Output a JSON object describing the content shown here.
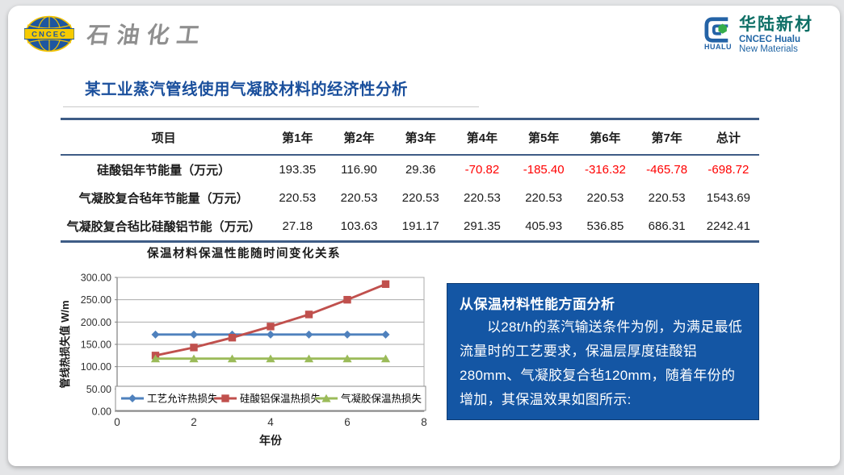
{
  "header": {
    "left_logo": {
      "acronym": "CNCEC",
      "brand": "石油化工"
    },
    "right_logo": {
      "cn": "华陆新材",
      "en1": "CNCEC Hualu",
      "en2": "New Materials",
      "mark": "HUALU"
    }
  },
  "title": "某工业蒸汽管线使用气凝胶材料的经济性分析",
  "table": {
    "columns": [
      "项目",
      "第1年",
      "第2年",
      "第3年",
      "第4年",
      "第5年",
      "第6年",
      "第7年",
      "总计"
    ],
    "rows": [
      {
        "label": "硅酸铝年节能量（万元）",
        "values": [
          "193.35",
          "116.90",
          "29.36",
          "-70.82",
          "-185.40",
          "-316.32",
          "-465.78",
          "-698.72"
        ]
      },
      {
        "label": "气凝胶复合毡年节能量（万元）",
        "values": [
          "220.53",
          "220.53",
          "220.53",
          "220.53",
          "220.53",
          "220.53",
          "220.53",
          "1543.69"
        ]
      },
      {
        "label": "气凝胶复合毡比硅酸铝节能（万元）",
        "values": [
          "27.18",
          "103.63",
          "191.17",
          "291.35",
          "405.93",
          "536.85",
          "686.31",
          "2242.41"
        ]
      }
    ],
    "negative_color": "#FF0000",
    "border_color": "#3E5C86"
  },
  "chart_data": {
    "type": "line",
    "title": "保温材料保温性能随时间变化关系",
    "xlabel": "年份",
    "ylabel": "管线热损失值 W/m",
    "x": [
      1,
      2,
      3,
      4,
      5,
      6,
      7
    ],
    "xlim": [
      0,
      8
    ],
    "xticks": [
      0,
      2,
      4,
      6,
      8
    ],
    "ylim": [
      0,
      300
    ],
    "ytick_step": 50,
    "grid": true,
    "legend_position": "bottom-inside",
    "series": [
      {
        "name": "工艺允许热损失",
        "color": "#4F81BD",
        "marker": "diamond",
        "values": [
          172,
          172,
          172,
          172,
          172,
          172,
          172
        ]
      },
      {
        "name": "硅酸铝保温热损失",
        "color": "#C0504D",
        "marker": "square",
        "values": [
          125,
          143,
          165,
          190,
          217,
          250,
          285
        ]
      },
      {
        "name": "气凝胶保温热损失",
        "color": "#9BBB59",
        "marker": "triangle",
        "values": [
          118,
          118,
          118,
          118,
          118,
          118,
          118
        ]
      }
    ]
  },
  "info_box": {
    "heading": "从保温材料性能方面分析",
    "body": "以28t/h的蒸汽输送条件为例，为满足最低流量时的工艺要求，保温层厚度硅酸铝280mm、气凝胶复合毡120mm，随着年份的增加，其保温效果如图所示:",
    "bg": "#1456A4"
  }
}
